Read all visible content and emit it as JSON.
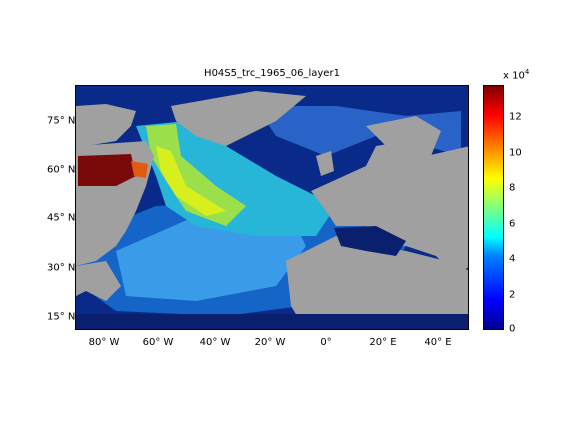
{
  "figure": {
    "title": "H04S5_trc_1965_06_layer1",
    "lat_ticks": [
      "75° N",
      "60° N",
      "45° N",
      "30° N",
      "15° N"
    ],
    "lon_ticks": [
      "80° W",
      "60° W",
      "40° W",
      "20° W",
      "0°",
      "20° E",
      "40° E"
    ],
    "colorbar": {
      "ticks": [
        "12",
        "10",
        "8",
        "6",
        "4",
        "2",
        "0"
      ],
      "exponent_base": "x 10",
      "exponent_power": "4",
      "range": [
        0,
        135000
      ]
    },
    "colors": {
      "land": "#a0a0a0",
      "ocean_low": "#0a1f6e",
      "ocean_mid": "#2f8ee6",
      "ocean_high": "#d6f01f",
      "hotspot": "#7a0a0a"
    }
  }
}
